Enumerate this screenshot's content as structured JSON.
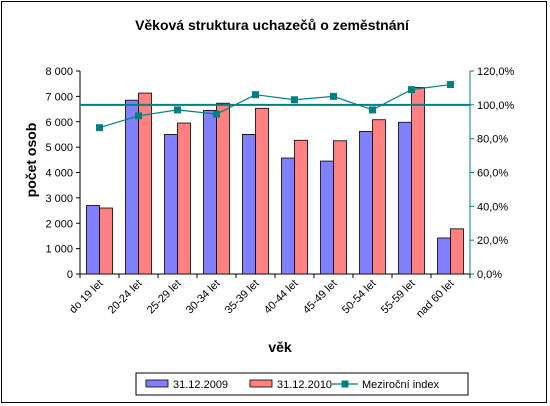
{
  "chart_data": {
    "type": "bar",
    "title": "Věková struktura uchazečů o zeměstnání",
    "xlabel": "věk",
    "ylabel": "počet osob",
    "categories": [
      "do 19 let",
      "20-24 let",
      "25-29 let",
      "30-34 let",
      "35-39 let",
      "40-44 let",
      "45-49 let",
      "50-54 let",
      "55-59 let",
      "nad 60 let"
    ],
    "ylim": [
      0,
      8000
    ],
    "yticks": [
      "0",
      "1 000",
      "2 000",
      "3 000",
      "4 000",
      "5 000",
      "6 000",
      "7 000",
      "8 000"
    ],
    "y2lim": [
      0,
      120
    ],
    "y2ticks": [
      "0,0%",
      "20,0%",
      "40,0%",
      "60,0%",
      "80,0%",
      "100,0%",
      "120,0%"
    ],
    "reference_line_y2": 100,
    "series": [
      {
        "name": "31.12.2009",
        "kind": "bar",
        "color": "#8080ff",
        "values": [
          2700,
          6850,
          5500,
          6450,
          5500,
          4570,
          4450,
          5620,
          5980,
          1420
        ]
      },
      {
        "name": "31.12.2010",
        "kind": "bar",
        "color": "#ff8080",
        "values": [
          2600,
          7130,
          5950,
          6730,
          6530,
          5270,
          5250,
          6080,
          7350,
          1780
        ]
      },
      {
        "name": "Meziroční index",
        "kind": "line",
        "axis": "right",
        "color": "#008080",
        "values": [
          86.5,
          93.5,
          97,
          94.5,
          106,
          103,
          105,
          97,
          109,
          112
        ]
      }
    ],
    "grid": false,
    "legend_position": "bottom"
  }
}
